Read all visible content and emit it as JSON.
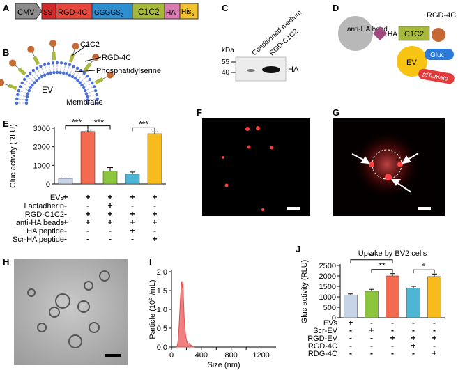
{
  "panels": {
    "A": "A",
    "B": "B",
    "C": "C",
    "D": "D",
    "E": "E",
    "F": "F",
    "G": "G",
    "H": "H",
    "I": "I",
    "J": "J"
  },
  "construct": {
    "segments": [
      {
        "label": "CMV",
        "color": "#8c8c8c"
      },
      {
        "label": "SS",
        "color": "#d62828"
      },
      {
        "label": "RGD-4C",
        "color": "#e8483b"
      },
      {
        "label": "GGGGS",
        "sub": "2",
        "color": "#2e8fd0"
      },
      {
        "label": "C1C2",
        "color": "#a7b83a"
      },
      {
        "label": "HA",
        "color": "#d97ab1"
      },
      {
        "label": "His",
        "sub": "6",
        "color": "#f2c12e"
      }
    ]
  },
  "membrane": {
    "c1c2": "C1C2",
    "rgd": "RGD-4C",
    "ps": "Phosphatidylserine",
    "ev": "EV",
    "membrane": "Membrane"
  },
  "blot": {
    "kda": "kDa",
    "marker_55": "55",
    "marker_40": "40",
    "lane1": "Conditioned medium",
    "lane2": "RGD-C1C2",
    "band": "HA"
  },
  "schematic": {
    "bead": "anti-HA bead",
    "ha": "HA",
    "c1c2": "C1C2",
    "rgd": "RGD-4C",
    "ev": "EV",
    "gluc": "Gluc",
    "tdtomato": "tdTomato"
  },
  "chart_data": [
    {
      "panel": "E",
      "type": "bar",
      "ylabel": "Gluc activity (RLU)",
      "ylim": [
        0,
        3000
      ],
      "yticks": [
        0,
        1000,
        2000,
        3000
      ],
      "categories": [
        "1",
        "2",
        "3",
        "4",
        "5"
      ],
      "values": [
        300,
        2820,
        700,
        530,
        2700
      ],
      "errors": [
        20,
        80,
        180,
        110,
        100
      ],
      "colors": [
        "#c7d3e6",
        "#f26a4f",
        "#8cc63f",
        "#4cb6d4",
        "#f7bb1e"
      ],
      "significance": [
        {
          "from": 0,
          "to": 1,
          "label": "***"
        },
        {
          "from": 1,
          "to": 2,
          "label": "***"
        },
        {
          "from": 3,
          "to": 4,
          "label": "***"
        }
      ],
      "conditions": [
        {
          "label": "EVs",
          "marks": [
            "+",
            "+",
            "+",
            "+",
            "+"
          ]
        },
        {
          "label": "Lactadherin",
          "marks": [
            "-",
            "-",
            "+",
            "-",
            "-"
          ]
        },
        {
          "label": "RGD-C1C2",
          "marks": [
            "-",
            "+",
            "+",
            "+",
            "+"
          ]
        },
        {
          "label": "anti-HA beads",
          "marks": [
            "+",
            "+",
            "+",
            "+",
            "+"
          ]
        },
        {
          "label": "HA peptide",
          "marks": [
            "-",
            "-",
            "-",
            "+",
            "-"
          ]
        },
        {
          "label": "Scr-HA peptide",
          "marks": [
            "-",
            "-",
            "-",
            "-",
            "+"
          ]
        }
      ]
    },
    {
      "panel": "I",
      "type": "area",
      "xlabel": "Size (nm)",
      "ylabel": "Particle (10",
      "ylabel_sup": "6",
      "ylabel_end": " /mL)",
      "xlim": [
        0,
        1400
      ],
      "ylim": [
        0,
        2.0
      ],
      "xticks": [
        0,
        200,
        400,
        600,
        800,
        1000,
        1200
      ],
      "yticks": [
        0.0,
        0.5,
        1.0,
        1.5,
        2.0
      ],
      "x": [
        60,
        80,
        90,
        100,
        110,
        120,
        130,
        135,
        140,
        145,
        150,
        155,
        160,
        170,
        180,
        190,
        200,
        210,
        220,
        240,
        260,
        280,
        300
      ],
      "y": [
        0.0,
        0.05,
        0.2,
        0.5,
        0.9,
        1.3,
        1.6,
        1.7,
        1.75,
        1.6,
        1.55,
        1.7,
        1.3,
        0.8,
        0.5,
        0.3,
        0.2,
        0.12,
        0.08,
        0.1,
        0.05,
        0.03,
        0.0
      ]
    },
    {
      "panel": "J",
      "type": "bar",
      "title": "Uptake by BV2 cells",
      "ylabel": "Gluc activity (RLU)",
      "ylim": [
        0,
        2500
      ],
      "yticks": [
        0,
        500,
        1000,
        1500,
        2000,
        2500
      ],
      "categories": [
        "1",
        "2",
        "3",
        "4",
        "5"
      ],
      "values": [
        1080,
        1270,
        2000,
        1420,
        1970
      ],
      "errors": [
        60,
        90,
        110,
        80,
        120
      ],
      "colors": [
        "#c7d3e6",
        "#8cc63f",
        "#f26a4f",
        "#4cb6d4",
        "#f7bb1e"
      ],
      "significance": [
        {
          "from": 0,
          "to": 2,
          "label": "**",
          "level": 2
        },
        {
          "from": 1,
          "to": 2,
          "label": "**",
          "level": 1
        },
        {
          "from": 3,
          "to": 4,
          "label": "*",
          "level": 1
        }
      ],
      "conditions": [
        {
          "label": "EVs",
          "marks": [
            "+",
            "-",
            "-",
            "-",
            "-"
          ]
        },
        {
          "label": "Scr-EV",
          "marks": [
            "-",
            "+",
            "-",
            "-",
            "-"
          ]
        },
        {
          "label": "RGD-EV",
          "marks": [
            "-",
            "-",
            "+",
            "+",
            "+"
          ]
        },
        {
          "label": "RGD-4C",
          "marks": [
            "-",
            "-",
            "-",
            "+",
            "-"
          ]
        },
        {
          "label": "RDG-4C",
          "marks": [
            "-",
            "-",
            "-",
            "-",
            "+"
          ]
        }
      ]
    }
  ]
}
